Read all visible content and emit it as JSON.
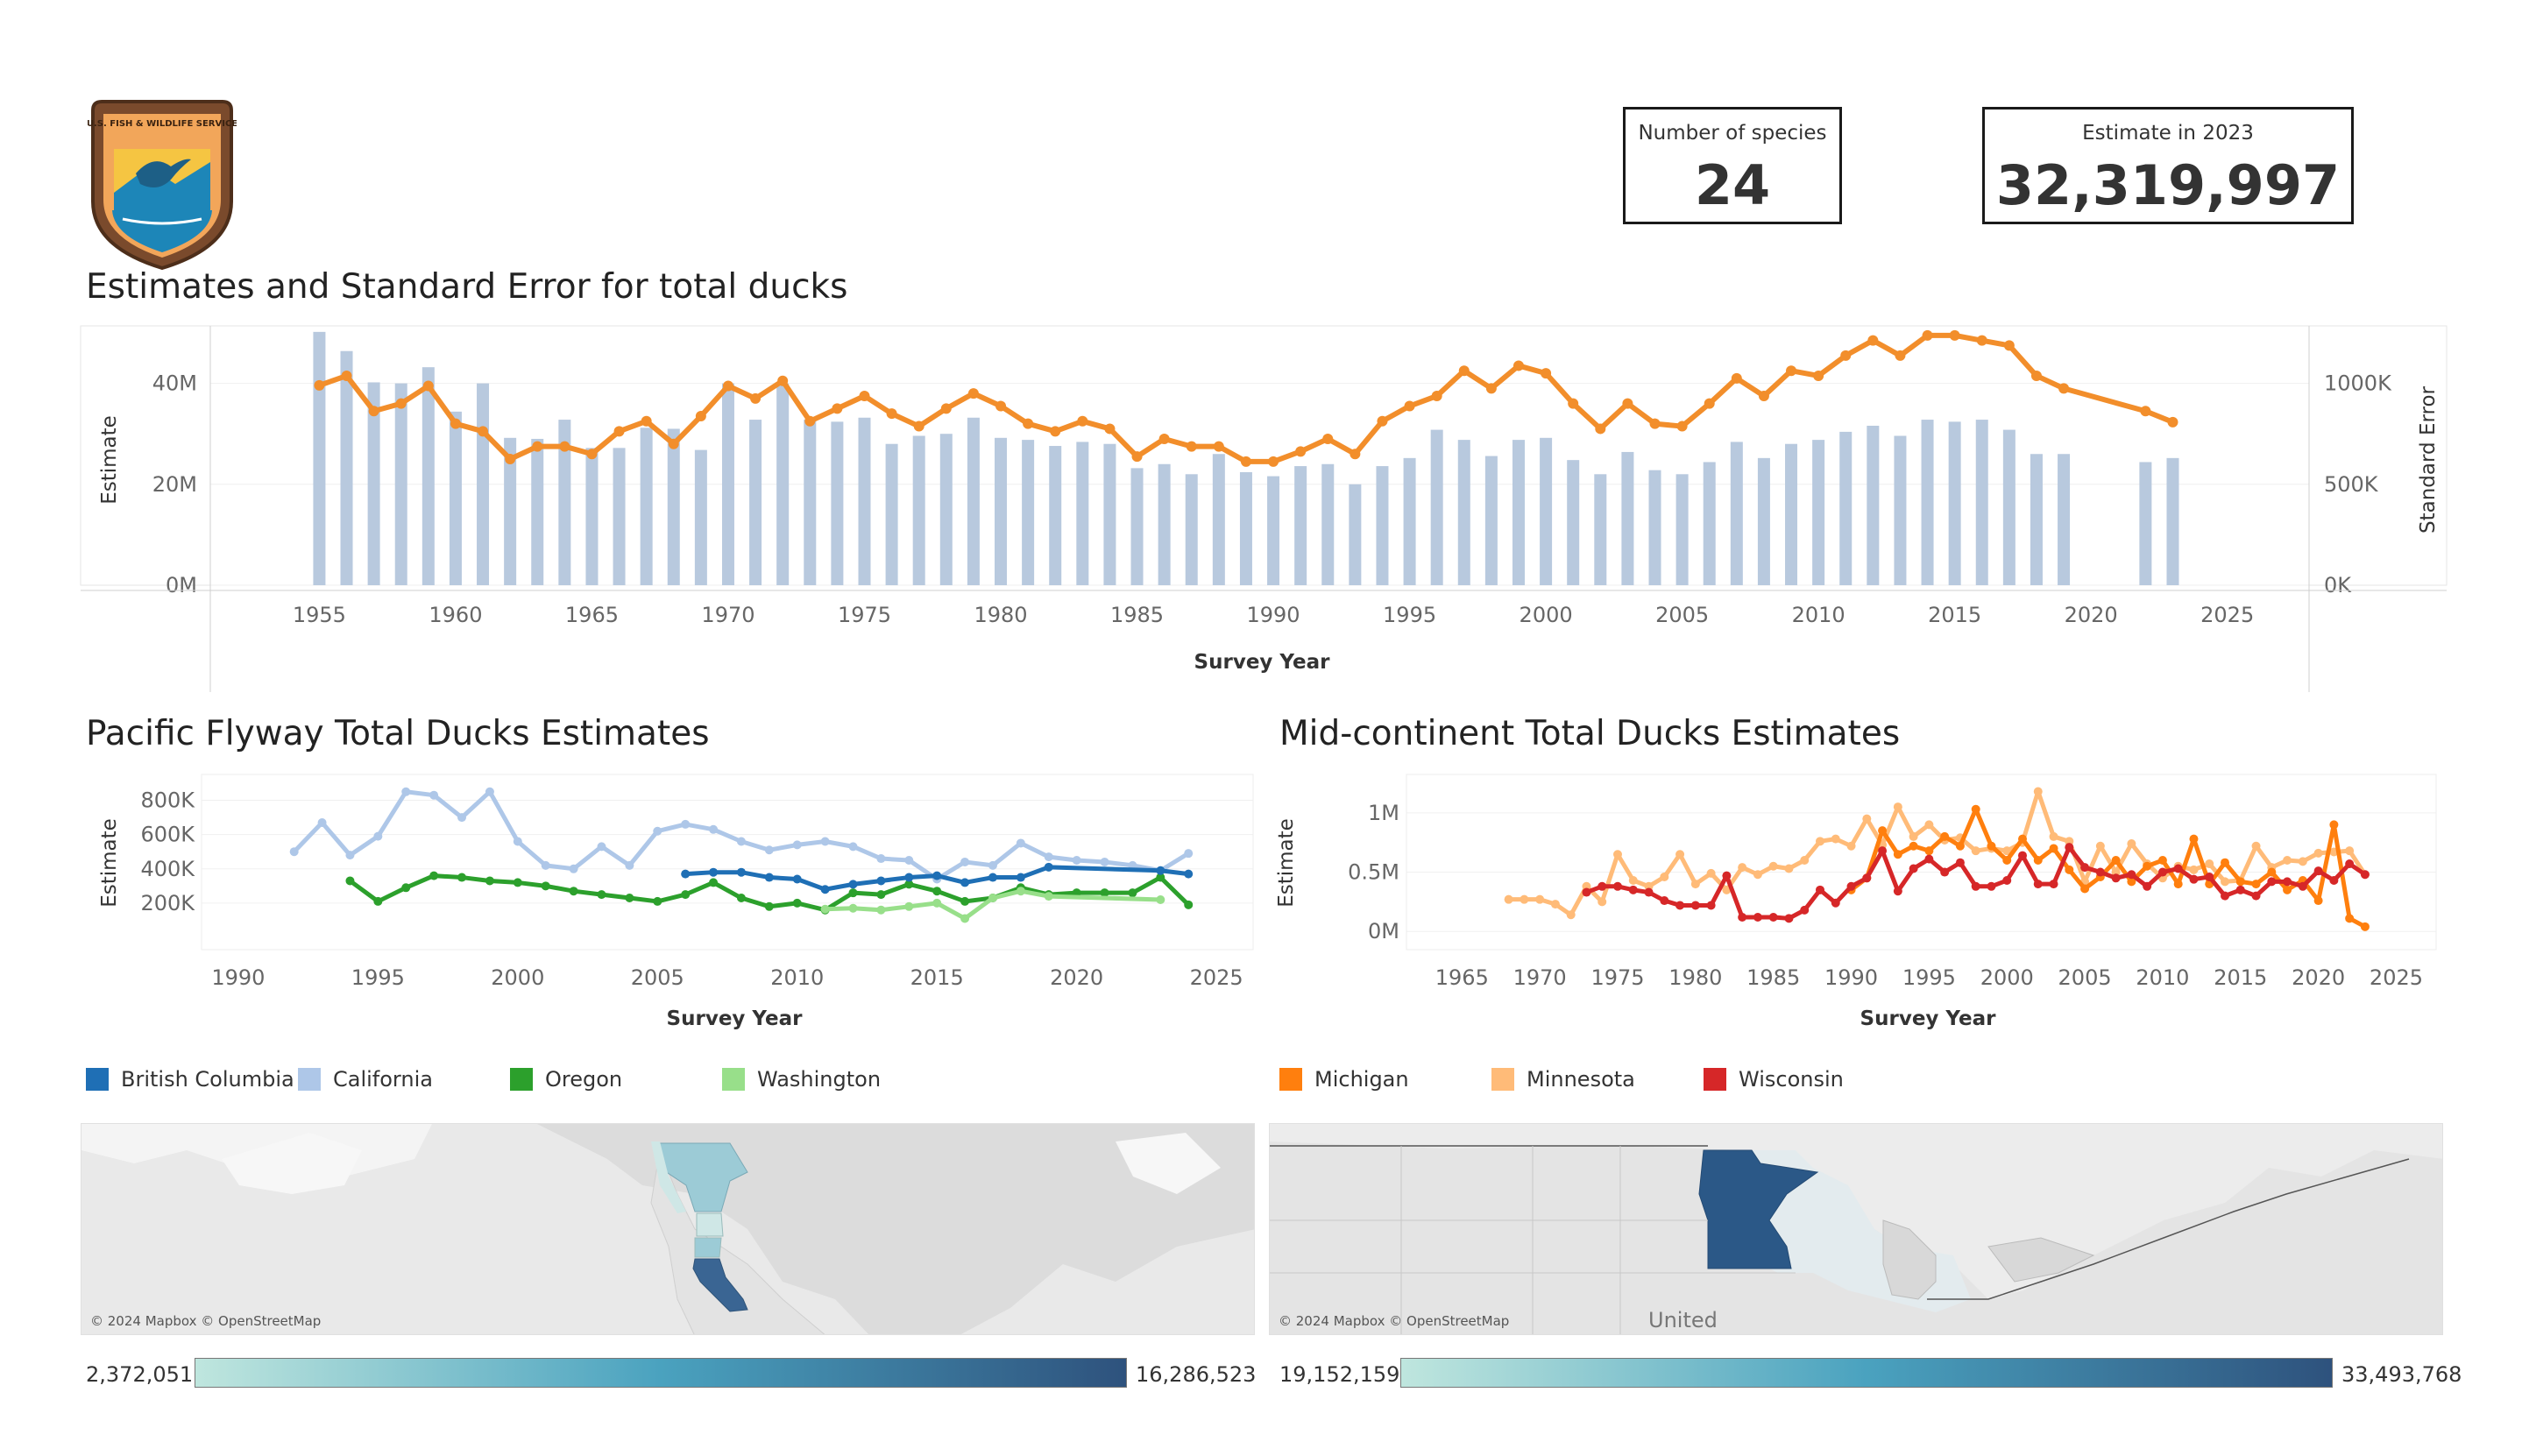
{
  "header": {
    "logo_text": "U.S. FISH & WILDLIFE SERVICE",
    "kpi_species_label": "Number of species",
    "kpi_species_value": "24",
    "kpi_estimate_label": "Estimate in 2023",
    "kpi_estimate_value": "32,319,997"
  },
  "main_chart": {
    "title": "Estimates and Standard Error for total ducks",
    "left_axis_label": "Estimate",
    "right_axis_label": "Standard Error",
    "x_axis_label": "Survey Year"
  },
  "pacific": {
    "title": "Pacific Flyway Total Ducks Estimates",
    "y_axis_label": "Estimate",
    "x_axis_label": "Survey Year",
    "legend": [
      {
        "name": "British Columbia",
        "color": "#1f6fb5"
      },
      {
        "name": "California",
        "color": "#aec7e8"
      },
      {
        "name": "Oregon",
        "color": "#2ca02c"
      },
      {
        "name": "Washington",
        "color": "#98df8a"
      }
    ],
    "map_credit": "© 2024 Mapbox © OpenStreetMap",
    "ramp_min": "2,372,051",
    "ramp_max": "16,286,523"
  },
  "midcontinent": {
    "title": "Mid-continent Total Ducks Estimates",
    "y_axis_label": "Estimate",
    "x_axis_label": "Survey Year",
    "legend": [
      {
        "name": "Michigan",
        "color": "#ff7f0e"
      },
      {
        "name": "Minnesota",
        "color": "#ffbb78"
      },
      {
        "name": "Wisconsin",
        "color": "#d62728"
      }
    ],
    "map_credit": "© 2024 Mapbox © OpenStreetMap",
    "map_place_label": "United",
    "ramp_min": "19,152,159",
    "ramp_max": "33,493,768"
  },
  "chart_data": [
    {
      "type": "bar",
      "title": "Estimates and Standard Error for total ducks",
      "xlabel": "Survey Year",
      "ylabel": "Estimate",
      "y2label": "Standard Error",
      "x_ticks": [
        1955,
        1960,
        1965,
        1970,
        1975,
        1980,
        1985,
        1990,
        1995,
        2000,
        2005,
        2010,
        2015,
        2020,
        2025
      ],
      "y_ticks": [
        "0M",
        "20M",
        "40M"
      ],
      "y2_ticks": [
        "0K",
        "500K",
        "1000K"
      ],
      "xlim": [
        1951,
        2028
      ],
      "ylim": [
        0,
        50000000
      ],
      "y2lim": [
        0,
        1250000
      ],
      "grid": true,
      "series": [
        {
          "name": "Estimate",
          "kind": "line",
          "color": "#f28e2b",
          "axis": "left",
          "x": [
            1955,
            1956,
            1957,
            1958,
            1959,
            1960,
            1961,
            1962,
            1963,
            1964,
            1965,
            1966,
            1967,
            1968,
            1969,
            1970,
            1971,
            1972,
            1973,
            1974,
            1975,
            1976,
            1977,
            1978,
            1979,
            1980,
            1981,
            1982,
            1983,
            1984,
            1985,
            1986,
            1987,
            1988,
            1989,
            1990,
            1991,
            1992,
            1993,
            1994,
            1995,
            1996,
            1997,
            1998,
            1999,
            2000,
            2001,
            2002,
            2003,
            2004,
            2005,
            2006,
            2007,
            2008,
            2009,
            2010,
            2011,
            2012,
            2013,
            2014,
            2015,
            2016,
            2017,
            2018,
            2019,
            2022,
            2023
          ],
          "values": [
            39600000,
            41500000,
            34500000,
            36000000,
            39500000,
            32000000,
            30500000,
            25000000,
            27500000,
            27500000,
            26000000,
            30500000,
            32500000,
            28000000,
            33500000,
            39500000,
            37000000,
            40500000,
            32500000,
            35000000,
            37500000,
            34000000,
            31500000,
            35000000,
            38000000,
            35500000,
            32000000,
            30500000,
            32500000,
            31000000,
            25500000,
            29000000,
            27500000,
            27500000,
            24500000,
            24500000,
            26500000,
            29000000,
            26000000,
            32500000,
            35500000,
            37500000,
            42500000,
            39000000,
            43500000,
            42000000,
            36000000,
            31000000,
            36000000,
            32000000,
            31500000,
            36000000,
            41000000,
            37500000,
            42500000,
            41500000,
            45500000,
            48500000,
            45500000,
            49500000,
            49500000,
            48500000,
            47500000,
            41500000,
            39000000,
            34500000,
            32319997
          ]
        },
        {
          "name": "Standard Error",
          "kind": "bar",
          "color": "#b8c9de",
          "axis": "right",
          "x": [
            1955,
            1956,
            1957,
            1958,
            1959,
            1960,
            1961,
            1962,
            1963,
            1964,
            1965,
            1966,
            1967,
            1968,
            1969,
            1970,
            1971,
            1972,
            1973,
            1974,
            1975,
            1976,
            1977,
            1978,
            1979,
            1980,
            1981,
            1982,
            1983,
            1984,
            1985,
            1986,
            1987,
            1988,
            1989,
            1990,
            1991,
            1992,
            1993,
            1994,
            1995,
            1996,
            1997,
            1998,
            1999,
            2000,
            2001,
            2002,
            2003,
            2004,
            2005,
            2006,
            2007,
            2008,
            2009,
            2010,
            2011,
            2012,
            2013,
            2014,
            2015,
            2016,
            2017,
            2018,
            2019,
            2022,
            2023
          ],
          "values": [
            1255000,
            1160000,
            1005000,
            1000000,
            1080000,
            860000,
            1000000,
            730000,
            725000,
            820000,
            680000,
            680000,
            780000,
            775000,
            670000,
            1000000,
            820000,
            1000000,
            820000,
            810000,
            830000,
            700000,
            740000,
            750000,
            830000,
            730000,
            720000,
            690000,
            710000,
            700000,
            580000,
            600000,
            550000,
            650000,
            560000,
            540000,
            590000,
            600000,
            500000,
            590000,
            630000,
            770000,
            720000,
            640000,
            720000,
            730000,
            620000,
            550000,
            660000,
            570000,
            550000,
            610000,
            710000,
            630000,
            700000,
            720000,
            760000,
            790000,
            740000,
            820000,
            810000,
            820000,
            770000,
            650000,
            650000,
            610000,
            630000
          ]
        }
      ]
    },
    {
      "type": "line",
      "title": "Pacific Flyway Total Ducks Estimates",
      "xlabel": "Survey Year",
      "ylabel": "Estimate",
      "x_ticks": [
        1990,
        1995,
        2000,
        2005,
        2010,
        2015,
        2020,
        2025
      ],
      "y_ticks": [
        "200K",
        "400K",
        "600K",
        "800K"
      ],
      "xlim": [
        1989,
        2026
      ],
      "ylim": [
        0,
        900000
      ],
      "grid": true,
      "series": [
        {
          "name": "California",
          "color": "#aec7e8",
          "x": [
            1992,
            1993,
            1994,
            1995,
            1996,
            1997,
            1998,
            1999,
            2000,
            2001,
            2002,
            2003,
            2004,
            2005,
            2006,
            2007,
            2008,
            2009,
            2010,
            2011,
            2012,
            2013,
            2014,
            2015,
            2016,
            2017,
            2018,
            2019,
            2020,
            2021,
            2022,
            2023,
            2024
          ],
          "values": [
            500000,
            670000,
            480000,
            590000,
            850000,
            830000,
            700000,
            850000,
            560000,
            420000,
            400000,
            530000,
            420000,
            620000,
            660000,
            630000,
            560000,
            510000,
            540000,
            560000,
            530000,
            460000,
            450000,
            340000,
            440000,
            420000,
            550000,
            470000,
            450000,
            440000,
            420000,
            390000,
            490000
          ]
        },
        {
          "name": "Oregon",
          "color": "#2ca02c",
          "x": [
            1994,
            1995,
            1996,
            1997,
            1998,
            1999,
            2000,
            2001,
            2002,
            2003,
            2004,
            2005,
            2006,
            2007,
            2008,
            2009,
            2010,
            2011,
            2012,
            2013,
            2014,
            2015,
            2016,
            2017,
            2018,
            2019,
            2020,
            2021,
            2022,
            2023,
            2024
          ],
          "values": [
            330000,
            210000,
            290000,
            360000,
            350000,
            330000,
            320000,
            300000,
            270000,
            250000,
            230000,
            210000,
            250000,
            320000,
            230000,
            180000,
            200000,
            160000,
            260000,
            250000,
            310000,
            270000,
            210000,
            230000,
            290000,
            250000,
            260000,
            260000,
            260000,
            350000,
            190000
          ]
        },
        {
          "name": "British Columbia",
          "color": "#1f6fb5",
          "x": [
            2006,
            2007,
            2008,
            2009,
            2010,
            2011,
            2012,
            2013,
            2014,
            2015,
            2016,
            2017,
            2018,
            2019,
            2023,
            2024
          ],
          "values": [
            370000,
            380000,
            380000,
            350000,
            340000,
            280000,
            310000,
            330000,
            350000,
            360000,
            320000,
            350000,
            350000,
            410000,
            390000,
            370000
          ]
        },
        {
          "name": "Washington",
          "color": "#98df8a",
          "x": [
            2011,
            2012,
            2013,
            2014,
            2015,
            2016,
            2017,
            2018,
            2019,
            2023
          ],
          "values": [
            165000,
            170000,
            160000,
            180000,
            200000,
            110000,
            230000,
            270000,
            240000,
            220000
          ]
        }
      ]
    },
    {
      "type": "line",
      "title": "Mid-continent Total Ducks Estimates",
      "xlabel": "Survey Year",
      "ylabel": "Estimate",
      "x_ticks": [
        1965,
        1970,
        1975,
        1980,
        1985,
        1990,
        1995,
        2000,
        2005,
        2010,
        2015,
        2020,
        2025
      ],
      "y_ticks": [
        "0M",
        "0.5M",
        "1M"
      ],
      "xlim": [
        1962,
        2027
      ],
      "ylim": [
        -50000,
        1250000
      ],
      "grid": true,
      "series": [
        {
          "name": "Minnesota",
          "color": "#ffbb78",
          "x": [
            1968,
            1969,
            1970,
            1971,
            1972,
            1973,
            1974,
            1975,
            1976,
            1977,
            1978,
            1979,
            1980,
            1981,
            1982,
            1983,
            1984,
            1985,
            1986,
            1987,
            1988,
            1989,
            1990,
            1991,
            1992,
            1993,
            1994,
            1995,
            1996,
            1997,
            1998,
            1999,
            2000,
            2001,
            2002,
            2003,
            2004,
            2005,
            2006,
            2007,
            2008,
            2009,
            2010,
            2011,
            2012,
            2013,
            2014,
            2015,
            2016,
            2017,
            2018,
            2019,
            2020,
            2021,
            2022,
            2023
          ],
          "values": [
            270000,
            270000,
            270000,
            230000,
            140000,
            380000,
            250000,
            650000,
            430000,
            380000,
            460000,
            650000,
            400000,
            490000,
            350000,
            540000,
            480000,
            550000,
            530000,
            600000,
            760000,
            780000,
            720000,
            950000,
            730000,
            1050000,
            800000,
            900000,
            770000,
            790000,
            680000,
            700000,
            680000,
            750000,
            1180000,
            800000,
            760000,
            420000,
            720000,
            500000,
            740000,
            570000,
            450000,
            550000,
            520000,
            570000,
            420000,
            430000,
            720000,
            540000,
            600000,
            590000,
            660000,
            670000,
            680000,
            480000
          ]
        },
        {
          "name": "Michigan",
          "color": "#ff7f0e",
          "x": [
            1990,
            1991,
            1992,
            1993,
            1994,
            1995,
            1996,
            1997,
            1998,
            1999,
            2000,
            2001,
            2002,
            2003,
            2004,
            2005,
            2006,
            2007,
            2008,
            2009,
            2010,
            2011,
            2012,
            2013,
            2014,
            2015,
            2016,
            2017,
            2018,
            2019,
            2020,
            2021,
            2022,
            2023
          ],
          "values": [
            350000,
            450000,
            850000,
            650000,
            720000,
            680000,
            800000,
            720000,
            1030000,
            720000,
            600000,
            780000,
            600000,
            700000,
            520000,
            360000,
            460000,
            600000,
            420000,
            550000,
            600000,
            400000,
            780000,
            400000,
            580000,
            420000,
            400000,
            500000,
            350000,
            430000,
            260000,
            900000,
            110000,
            40000
          ]
        },
        {
          "name": "Wisconsin",
          "color": "#d62728",
          "x": [
            1973,
            1974,
            1975,
            1976,
            1977,
            1978,
            1979,
            1980,
            1981,
            1982,
            1983,
            1984,
            1985,
            1986,
            1987,
            1988,
            1989,
            1990,
            1991,
            1992,
            1993,
            1994,
            1995,
            1996,
            1997,
            1998,
            1999,
            2000,
            2001,
            2002,
            2003,
            2004,
            2005,
            2006,
            2007,
            2008,
            2009,
            2010,
            2011,
            2012,
            2013,
            2014,
            2015,
            2016,
            2017,
            2018,
            2019,
            2020,
            2021,
            2022,
            2023
          ],
          "values": [
            330000,
            380000,
            380000,
            350000,
            330000,
            260000,
            220000,
            220000,
            220000,
            470000,
            120000,
            120000,
            120000,
            110000,
            180000,
            350000,
            240000,
            380000,
            450000,
            680000,
            340000,
            530000,
            610000,
            500000,
            580000,
            380000,
            380000,
            430000,
            640000,
            400000,
            400000,
            710000,
            540000,
            500000,
            450000,
            480000,
            380000,
            500000,
            530000,
            440000,
            460000,
            300000,
            350000,
            300000,
            420000,
            420000,
            380000,
            510000,
            430000,
            570000,
            480000
          ]
        }
      ]
    }
  ]
}
